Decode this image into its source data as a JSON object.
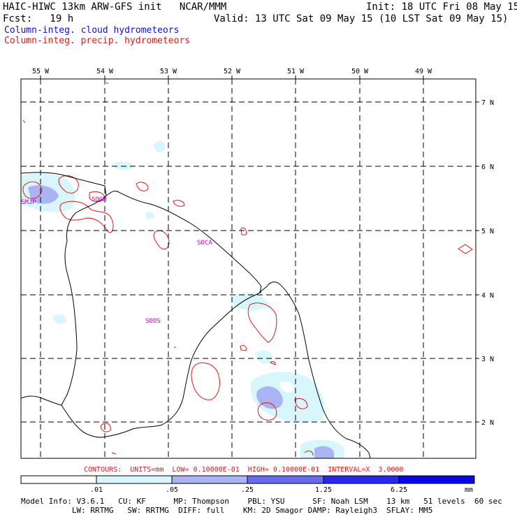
{
  "header": {
    "line1_left": "HAIC-HIWC 13km ARW-GFS init   NCAR/MMM",
    "line1_right": "Init: 18 UTC Fri 08 May 15",
    "line2_left": "Fcst:   19 h",
    "line2_right": "Valid: 13 UTC Sat 09 May 15 (10 LST Sat 09 May 15)"
  },
  "legend": {
    "cloud_label": "Column-integ. cloud hydrometeors",
    "precip_label": "Column-integ. precip. hydrometeors",
    "cloud_color": "#1010d0",
    "precip_color": "#e01818"
  },
  "map": {
    "lon_labels": [
      "55 W",
      "54 W",
      "53 W",
      "52 W",
      "51 W",
      "50 W",
      "49 W"
    ],
    "lat_labels": [
      "7 N",
      "6 N",
      "5 N",
      "4 N",
      "3 N",
      "2 N"
    ],
    "stations": [
      "SMJP",
      "SOGM",
      "SOCA",
      "SOOS"
    ]
  },
  "contours_text": "CONTOURS:  UNITS=mm  LOW= 0.10000E-01  HIGH= 0.10000E-01  INTERVAL=X  3.0000",
  "colorbar": {
    "labels": [
      ".01",
      ".05",
      ".25",
      "1.25",
      "6.25"
    ],
    "unit": "mm",
    "colors": [
      "#ffffff",
      "#d8f6fc",
      "#aab4f4",
      "#6a6af0",
      "#2828e8",
      "#0808e0"
    ]
  },
  "model_info": {
    "line1": "Model Info: V3.6.1   CU: KF      MP: Thompson    PBL: YSU      SF: Noah LSM    13 km   51 levels  60 sec",
    "line2": "           LW: RRTMG   SW: RRTMG  DIFF: full    KM: 2D Smagor DAMP: Rayleigh3  SFLAY: MM5"
  }
}
